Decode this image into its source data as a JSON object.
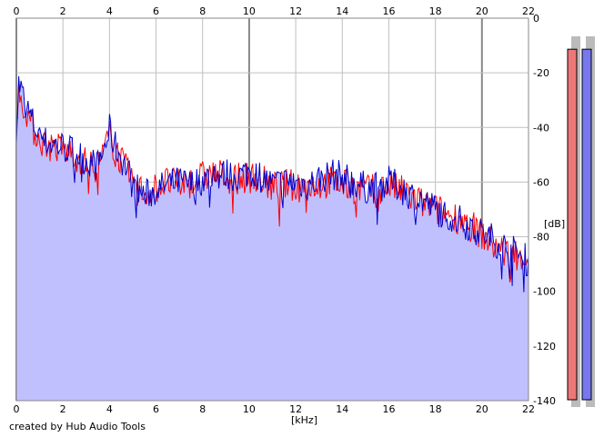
{
  "chart_data": {
    "type": "area",
    "xlabel": "[kHz]",
    "ylabel": "[dB]",
    "xlim": [
      0,
      22
    ],
    "ylim": [
      -140,
      0
    ],
    "x_ticks": [
      "0",
      "2",
      "4",
      "6",
      "8",
      "10",
      "12",
      "14",
      "16",
      "18",
      "20",
      "22"
    ],
    "y_ticks": [
      "0",
      "-20",
      "-40",
      "-60",
      "-80",
      "-100",
      "-120",
      "-140"
    ],
    "grid": true,
    "series": [
      {
        "color": "#ff0000",
        "x": [
          0,
          0.1,
          0.2,
          0.4,
          0.6,
          0.8,
          1.0,
          1.2,
          1.5,
          2.0,
          2.5,
          3.0,
          3.5,
          3.8,
          4.0,
          4.2,
          4.5,
          4.8,
          5.0,
          5.5,
          6.0,
          6.5,
          7.0,
          7.5,
          8.0,
          8.5,
          9.0,
          9.5,
          10.0,
          10.5,
          11.0,
          11.5,
          12.0,
          12.5,
          13.0,
          13.5,
          14.0,
          14.5,
          15.0,
          15.5,
          16.0,
          16.5,
          17.0,
          17.5,
          18.0,
          18.5,
          19.0,
          19.5,
          20.0,
          20.5,
          21.0,
          21.5,
          22.0
        ],
        "y": [
          -35,
          -28,
          -30,
          -33,
          -38,
          -42,
          -44,
          -46,
          -47,
          -48,
          -50,
          -53,
          -55,
          -48,
          -43,
          -47,
          -52,
          -57,
          -60,
          -64,
          -62,
          -60,
          -61,
          -60,
          -58,
          -57,
          -58,
          -59,
          -58,
          -59,
          -62,
          -61,
          -61,
          -61,
          -61,
          -60,
          -61,
          -62,
          -63,
          -63,
          -61,
          -63,
          -66,
          -68,
          -70,
          -72,
          -73,
          -76,
          -79,
          -83,
          -86,
          -86,
          -88
        ]
      },
      {
        "color": "#0000cc",
        "x": [
          0,
          0.1,
          0.2,
          0.4,
          0.6,
          0.8,
          1.0,
          1.2,
          1.5,
          2.0,
          2.5,
          3.0,
          3.5,
          3.8,
          4.0,
          4.2,
          4.5,
          4.8,
          5.0,
          5.5,
          6.0,
          6.5,
          7.0,
          7.5,
          8.0,
          8.5,
          9.0,
          9.5,
          10.0,
          10.5,
          11.0,
          11.5,
          12.0,
          12.5,
          13.0,
          13.5,
          14.0,
          14.5,
          15.0,
          15.5,
          16.0,
          16.5,
          17.0,
          17.5,
          18.0,
          18.5,
          19.0,
          19.5,
          20.0,
          20.5,
          21.0,
          21.5,
          22.0
        ],
        "y": [
          -40,
          -24,
          -26,
          -32,
          -36,
          -40,
          -42,
          -45,
          -46,
          -47,
          -49,
          -52,
          -54,
          -47,
          -41,
          -46,
          -51,
          -56,
          -61,
          -65,
          -63,
          -61,
          -60,
          -61,
          -59,
          -58,
          -57,
          -58,
          -56,
          -58,
          -61,
          -60,
          -60,
          -61,
          -59,
          -57,
          -58,
          -60,
          -62,
          -62,
          -60,
          -62,
          -65,
          -67,
          -70,
          -72,
          -74,
          -76,
          -79,
          -81,
          -84,
          -86,
          -89
        ]
      }
    ]
  },
  "footer": {
    "credit": "created by Hub Audio Tools"
  },
  "level_meters": {
    "left_color": "#ee7777",
    "right_color": "#7777ee",
    "left_level": 0.955,
    "right_level": 0.955
  },
  "colors": {
    "fill": "#c0c0ff",
    "grid": "#c0c0c0",
    "major_grid": "#888888"
  }
}
